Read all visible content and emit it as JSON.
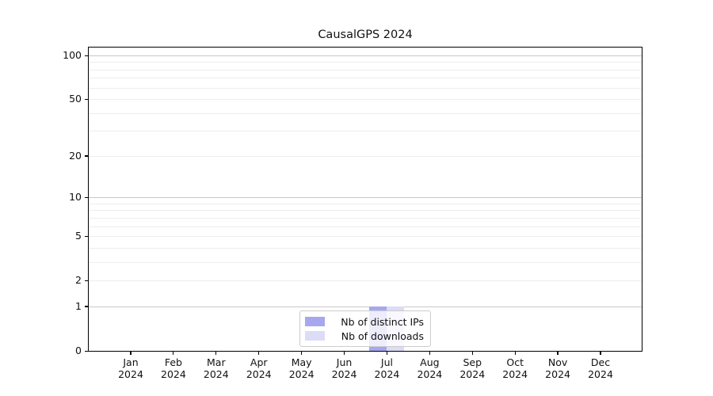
{
  "title": "CausalGPS 2024",
  "legend": {
    "items": [
      {
        "label": "Nb of distinct IPs",
        "color": "#a7a7ef"
      },
      {
        "label": "Nb of downloads",
        "color": "#dcdcf7"
      }
    ]
  },
  "chart_data": {
    "type": "bar",
    "title": "CausalGPS 2024",
    "categories": [
      {
        "month": "Jan",
        "year": "2024"
      },
      {
        "month": "Feb",
        "year": "2024"
      },
      {
        "month": "Mar",
        "year": "2024"
      },
      {
        "month": "Apr",
        "year": "2024"
      },
      {
        "month": "May",
        "year": "2024"
      },
      {
        "month": "Jun",
        "year": "2024"
      },
      {
        "month": "Jul",
        "year": "2024"
      },
      {
        "month": "Aug",
        "year": "2024"
      },
      {
        "month": "Sep",
        "year": "2024"
      },
      {
        "month": "Oct",
        "year": "2024"
      },
      {
        "month": "Nov",
        "year": "2024"
      },
      {
        "month": "Dec",
        "year": "2024"
      }
    ],
    "series": [
      {
        "name": "Nb of distinct IPs",
        "color": "#a7a7ef",
        "values": [
          0,
          0,
          0,
          0,
          0,
          0,
          1,
          0,
          0,
          0,
          0,
          0
        ]
      },
      {
        "name": "Nb of downloads",
        "color": "#dcdcf7",
        "values": [
          0,
          0,
          0,
          0,
          0,
          0,
          1,
          0,
          0,
          0,
          0,
          0
        ]
      }
    ],
    "y_axis": {
      "scale": "log1p",
      "ticks": [
        0,
        1,
        2,
        5,
        10,
        20,
        50,
        100
      ],
      "range": [
        0,
        100
      ],
      "major_grid_values": [
        1,
        10,
        100
      ],
      "minor_grid_values": [
        2,
        3,
        4,
        5,
        6,
        7,
        8,
        9,
        20,
        30,
        40,
        50,
        60,
        70,
        80,
        90
      ]
    },
    "grid": true,
    "legend_position": "lower center",
    "colors": {
      "major_grid": "#c9c9c9",
      "minor_grid": "#ededed",
      "spine": "#000000"
    }
  }
}
